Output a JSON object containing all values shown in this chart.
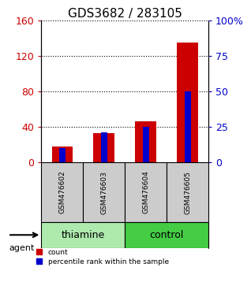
{
  "title": "GDS3682 / 283105",
  "samples": [
    "GSM476602",
    "GSM476603",
    "GSM476604",
    "GSM476605"
  ],
  "count_values": [
    18,
    33,
    46,
    135
  ],
  "percentile_values": [
    10,
    21,
    25,
    50
  ],
  "left_ylim": [
    0,
    160
  ],
  "right_ylim": [
    0,
    100
  ],
  "left_yticks": [
    0,
    40,
    80,
    120,
    160
  ],
  "right_yticks": [
    0,
    25,
    50,
    75,
    100
  ],
  "right_yticklabels": [
    "0",
    "25",
    "50",
    "75",
    "100%"
  ],
  "bar_color_count": "#cc0000",
  "bar_color_percentile": "#0000cc",
  "red_bar_width": 0.5,
  "blue_bar_width": 0.15,
  "groups": [
    "thiamine",
    "control"
  ],
  "group_colors": [
    "#aeeaae",
    "#44cc44"
  ],
  "agent_label": "agent",
  "tick_color_left": "#cc0000",
  "tick_color_right": "#0000cc",
  "sample_box_color": "#cccccc",
  "legend_count_label": "count",
  "legend_percentile_label": "percentile rank within the sample",
  "title_fontsize": 11,
  "tick_fontsize": 9,
  "group_fontsize": 9,
  "percentile_scale": 1.6
}
